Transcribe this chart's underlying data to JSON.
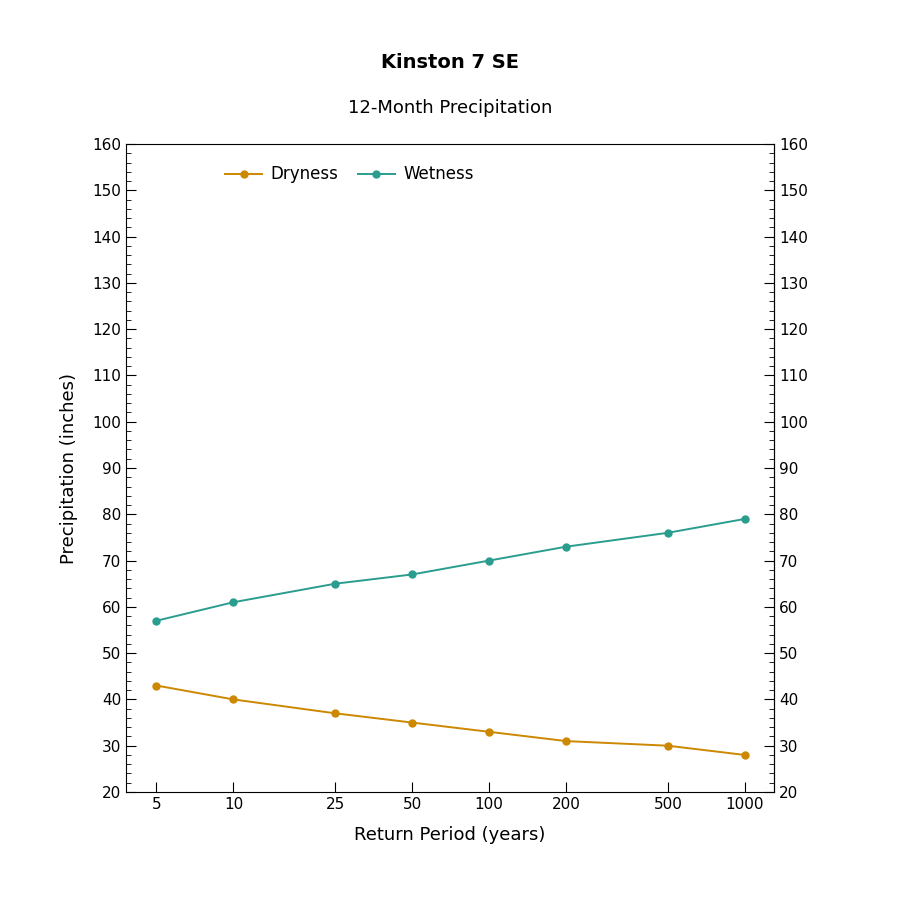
{
  "title_line1": "Kinston 7 SE",
  "title_line2": "12-Month Precipitation",
  "xlabel": "Return Period (years)",
  "ylabel": "Precipitation (inches)",
  "x_ticks": [
    5,
    10,
    25,
    50,
    100,
    200,
    500,
    1000
  ],
  "ylim": [
    20,
    160
  ],
  "y_ticks": [
    20,
    30,
    40,
    50,
    60,
    70,
    80,
    90,
    100,
    110,
    120,
    130,
    140,
    150,
    160
  ],
  "dryness_x": [
    5,
    10,
    25,
    50,
    100,
    200,
    500,
    1000
  ],
  "dryness_y": [
    43,
    40,
    37,
    35,
    33,
    31,
    30,
    28
  ],
  "wetness_x": [
    5,
    10,
    25,
    50,
    100,
    200,
    500,
    1000
  ],
  "wetness_y": [
    57,
    61,
    65,
    67,
    70,
    73,
    76,
    79
  ],
  "dryness_color": "#CC8800",
  "wetness_color": "#2A9D8F",
  "background_color": "#FFFFFF",
  "legend_labels": [
    "Dryness",
    "Wetness"
  ],
  "title1_fontsize": 14,
  "title2_fontsize": 13,
  "label_fontsize": 13,
  "tick_fontsize": 11,
  "legend_fontsize": 12,
  "xlim_left": 3.8,
  "xlim_right": 1300
}
